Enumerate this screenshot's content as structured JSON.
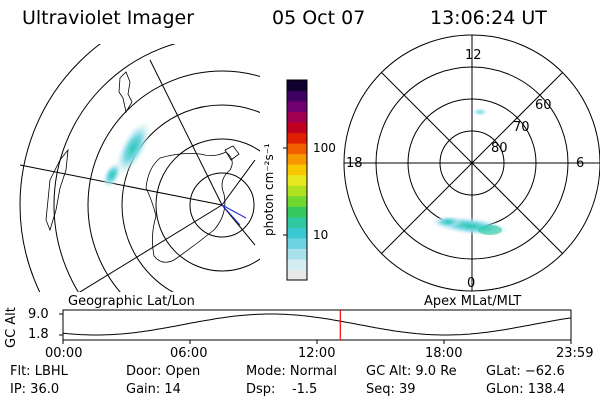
{
  "header": {
    "title": "Ultraviolet Imager",
    "date": "05 Oct 07",
    "time": "13:06:24 UT"
  },
  "colorbar": {
    "unit_label": "photon cm⁻²s⁻¹",
    "ticks": [
      {
        "label": "100",
        "value": 100
      },
      {
        "label": "10",
        "value": 10
      }
    ],
    "colors": [
      "#e8e8e8",
      "#d4ecf4",
      "#a8e0ec",
      "#6cd4e0",
      "#3cc8d0",
      "#30c8a0",
      "#38c860",
      "#70d830",
      "#b0e020",
      "#e8e820",
      "#f8c800",
      "#f89800",
      "#f06000",
      "#e02000",
      "#c00020",
      "#a00050",
      "#700070",
      "#400060",
      "#100030"
    ]
  },
  "left_panel": {
    "label": "Geographic Lat/Lon"
  },
  "right_panel": {
    "label": "Apex MLat/MLT",
    "mlt_labels": {
      "top": "12",
      "left": "18",
      "right": "6",
      "bottom": "0"
    },
    "lat_labels": [
      "60",
      "70",
      "80"
    ]
  },
  "timeline": {
    "ylabel": "GC Alt",
    "ytick_top": "9.0",
    "ytick_bottom": "1.8",
    "xticks": [
      "00:00",
      "06:00",
      "12:00",
      "18:00",
      "23:59"
    ],
    "marker_time_hours": 13.1,
    "marker_color": "#ff0000"
  },
  "info": {
    "filter": "Flt: LBHL",
    "ip": "IP: 36.0",
    "door": "Door: Open",
    "gain": "Gain: 14",
    "mode": "Mode: Normal",
    "dsp": "Dsp:    -1.5",
    "gc_alt": "GC Alt: 9.0 Re",
    "seq": "Seq: 39",
    "glat": "GLat: −62.6",
    "glon": "GLon: 138.4"
  }
}
